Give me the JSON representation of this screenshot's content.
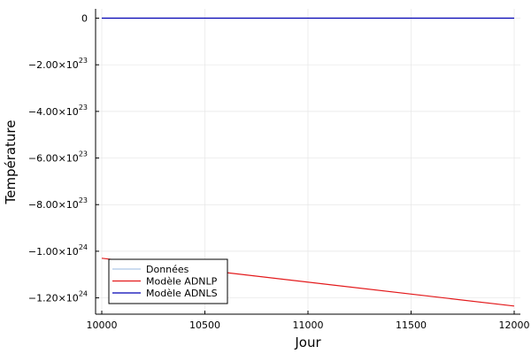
{
  "chart_data": {
    "type": "line",
    "title": "",
    "xlabel": "Jour",
    "ylabel": "Température",
    "xlim": [
      9970,
      12030
    ],
    "ylim": [
      -1.27e+24,
      4e+22
    ],
    "grid": true,
    "legend_position": "bottom-left",
    "x_ticks": [
      {
        "value": 10000,
        "label": "10000"
      },
      {
        "value": 10500,
        "label": "10500"
      },
      {
        "value": 11000,
        "label": "11000"
      },
      {
        "value": 11500,
        "label": "11500"
      },
      {
        "value": 12000,
        "label": "12000"
      }
    ],
    "y_ticks": [
      {
        "value": 0,
        "mantissa": "0",
        "exp": ""
      },
      {
        "value": -2e+23,
        "mantissa": "−2.00×10",
        "exp": "23"
      },
      {
        "value": -4e+23,
        "mantissa": "−4.00×10",
        "exp": "23"
      },
      {
        "value": -6e+23,
        "mantissa": "−6.00×10",
        "exp": "23"
      },
      {
        "value": -8e+23,
        "mantissa": "−8.00×10",
        "exp": "23"
      },
      {
        "value": -1e+24,
        "mantissa": "−1.00×10",
        "exp": "24"
      },
      {
        "value": -1.2e+24,
        "mantissa": "−1.20×10",
        "exp": "24"
      }
    ],
    "series": [
      {
        "name": "Données",
        "color": "#aec7e8",
        "x": [],
        "y": []
      },
      {
        "name": "Modèle ADNLP",
        "color": "#e31a1c",
        "x": [
          10000,
          12000
        ],
        "y": [
          -1.03e+24,
          -1.235e+24
        ]
      },
      {
        "name": "Modèle ADNLS",
        "color": "#0000b3",
        "x": [
          10000,
          12000
        ],
        "y": [
          0,
          0
        ]
      }
    ]
  }
}
